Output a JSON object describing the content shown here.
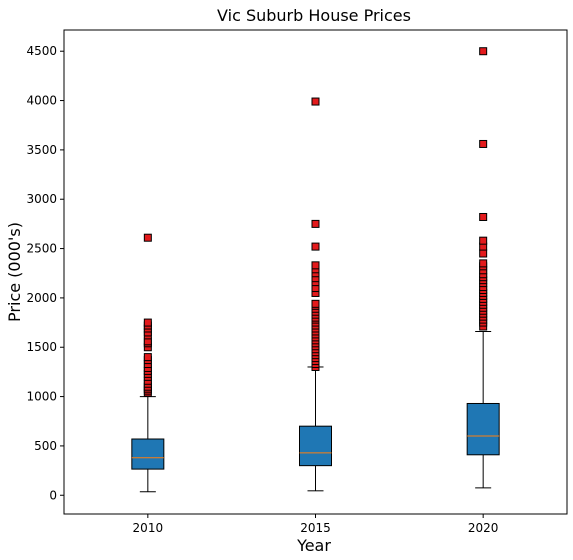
{
  "chart_data": {
    "type": "box",
    "title": "Vic Suburb House Prices",
    "xlabel": "Year",
    "ylabel": "Price (000's)",
    "categories": [
      "2010",
      "2015",
      "2020"
    ],
    "yticks": [
      0,
      500,
      1000,
      1500,
      2000,
      2500,
      3000,
      3500,
      4000,
      4500
    ],
    "ylim": [
      -190,
      4715
    ],
    "xlim": [
      0.5,
      3.5
    ],
    "grid": false,
    "box_color": "#1f77b4",
    "median_color": "#ff7f0e",
    "outlier_color": "#e31a1c",
    "boxes": [
      {
        "category": "2010",
        "whisker_low": 35,
        "q1": 265,
        "median": 380,
        "q3": 570,
        "whisker_high": 1000,
        "outliers": [
          1040,
          1060,
          1080,
          1100,
          1130,
          1160,
          1200,
          1230,
          1260,
          1290,
          1330,
          1370,
          1400,
          1500,
          1540,
          1560,
          1620,
          1650,
          1690,
          1720,
          1750,
          2610
        ]
      },
      {
        "category": "2015",
        "whisker_low": 45,
        "q1": 300,
        "median": 430,
        "q3": 700,
        "whisker_high": 1300,
        "outliers": [
          1300,
          1330,
          1360,
          1390,
          1420,
          1450,
          1480,
          1510,
          1540,
          1570,
          1600,
          1630,
          1660,
          1690,
          1720,
          1750,
          1780,
          1800,
          1830,
          1860,
          1890,
          1920,
          1940,
          2050,
          2100,
          2160,
          2200,
          2250,
          2290,
          2330,
          2520,
          2750,
          3990
        ]
      },
      {
        "category": "2020",
        "whisker_low": 75,
        "q1": 410,
        "median": 600,
        "q3": 930,
        "whisker_high": 1660,
        "outliers": [
          1710,
          1750,
          1780,
          1810,
          1840,
          1870,
          1900,
          1930,
          1960,
          1990,
          2020,
          2050,
          2080,
          2110,
          2150,
          2180,
          2210,
          2240,
          2280,
          2320,
          2350,
          2450,
          2520,
          2580,
          2820,
          3560,
          4500
        ]
      }
    ]
  }
}
